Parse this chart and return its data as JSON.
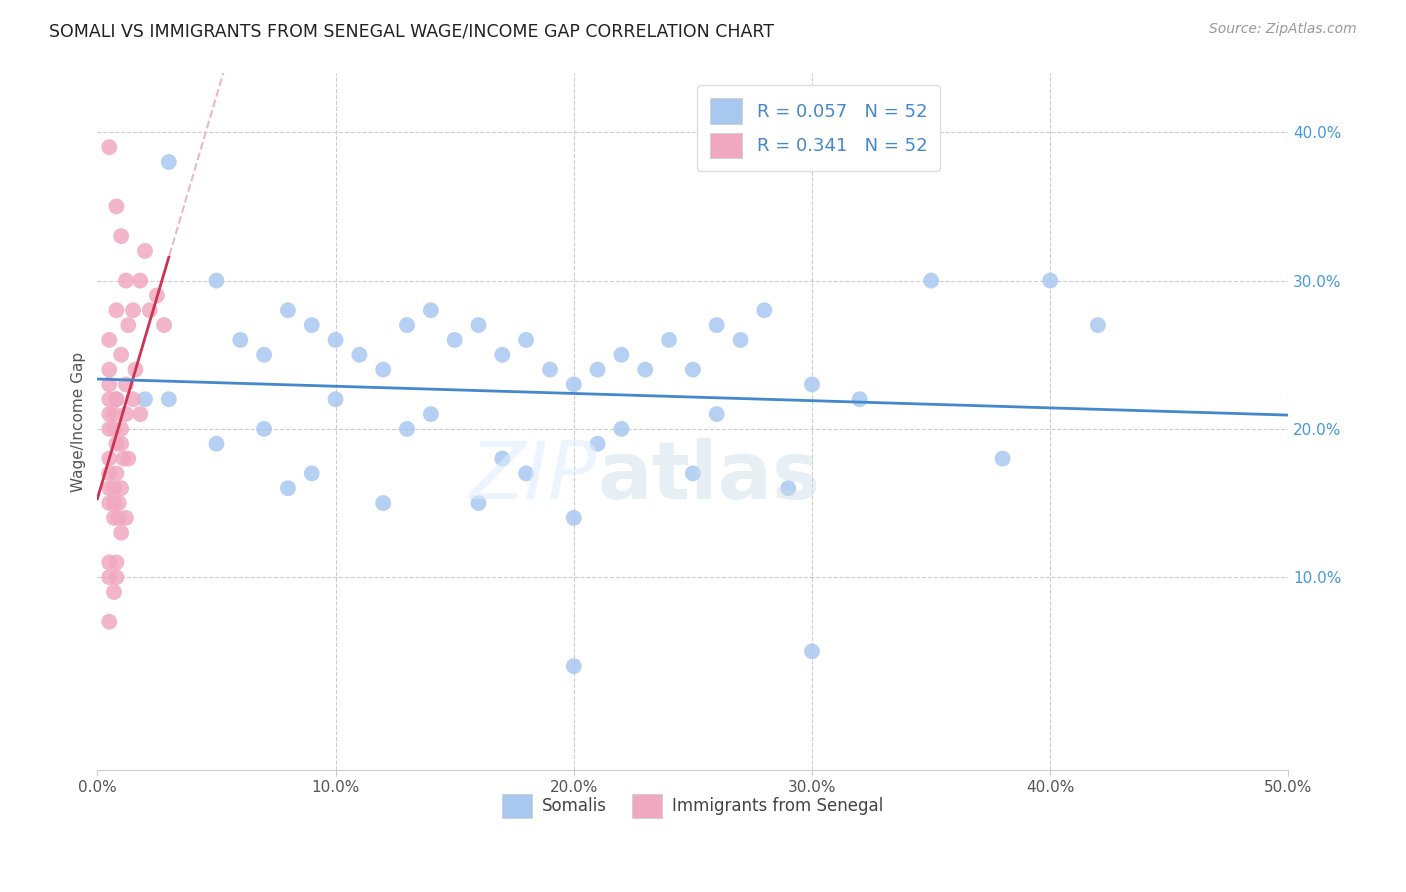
{
  "title": "SOMALI VS IMMIGRANTS FROM SENEGAL WAGE/INCOME GAP CORRELATION CHART",
  "source": "Source: ZipAtlas.com",
  "ylabel": "Wage/Income Gap",
  "xlim": [
    0.0,
    0.5
  ],
  "ylim": [
    -0.03,
    0.44
  ],
  "xticks": [
    0.0,
    0.1,
    0.2,
    0.3,
    0.4,
    0.5
  ],
  "xticklabels": [
    "0.0%",
    "10.0%",
    "20.0%",
    "30.0%",
    "40.0%",
    "50.0%"
  ],
  "yticks_right": [
    0.1,
    0.2,
    0.3,
    0.4
  ],
  "yticklabels_right": [
    "10.0%",
    "20.0%",
    "30.0%",
    "40.0%"
  ],
  "legend_label1": "Somalis",
  "legend_label2": "Immigrants from Senegal",
  "R1": "0.057",
  "N1": "52",
  "R2": "0.341",
  "N2": "52",
  "color_blue": "#a8c8f0",
  "color_pink": "#f0a8c0",
  "trendline_blue": "#4488cc",
  "trendline_pink": "#cc3355",
  "trendline_dashed_color": "#e8b8c8",
  "somali_x": [
    0.02,
    0.03,
    0.05,
    0.06,
    0.07,
    0.08,
    0.09,
    0.1,
    0.11,
    0.12,
    0.13,
    0.14,
    0.15,
    0.16,
    0.17,
    0.18,
    0.19,
    0.2,
    0.21,
    0.22,
    0.23,
    0.24,
    0.25,
    0.26,
    0.27,
    0.28,
    0.3,
    0.32,
    0.35,
    0.38,
    0.4,
    0.42,
    0.03,
    0.07,
    0.1,
    0.14,
    0.18,
    0.22,
    0.26,
    0.05,
    0.09,
    0.13,
    0.17,
    0.21,
    0.25,
    0.29,
    0.08,
    0.12,
    0.16,
    0.2,
    0.3,
    0.2
  ],
  "somali_y": [
    0.22,
    0.38,
    0.3,
    0.26,
    0.25,
    0.28,
    0.27,
    0.26,
    0.25,
    0.24,
    0.27,
    0.28,
    0.26,
    0.27,
    0.25,
    0.26,
    0.24,
    0.23,
    0.24,
    0.25,
    0.24,
    0.26,
    0.24,
    0.27,
    0.26,
    0.28,
    0.23,
    0.22,
    0.3,
    0.18,
    0.3,
    0.27,
    0.22,
    0.2,
    0.22,
    0.21,
    0.17,
    0.2,
    0.21,
    0.19,
    0.17,
    0.2,
    0.18,
    0.19,
    0.17,
    0.16,
    0.16,
    0.15,
    0.15,
    0.14,
    0.05,
    0.04
  ],
  "senegal_x": [
    0.005,
    0.008,
    0.01,
    0.012,
    0.015,
    0.018,
    0.02,
    0.022,
    0.025,
    0.028,
    0.005,
    0.008,
    0.01,
    0.013,
    0.016,
    0.005,
    0.008,
    0.012,
    0.015,
    0.018,
    0.005,
    0.007,
    0.01,
    0.013,
    0.005,
    0.008,
    0.011,
    0.005,
    0.008,
    0.01,
    0.005,
    0.007,
    0.009,
    0.012,
    0.005,
    0.007,
    0.009,
    0.005,
    0.007,
    0.01,
    0.005,
    0.007,
    0.005,
    0.008,
    0.01,
    0.012,
    0.005,
    0.008,
    0.005,
    0.007,
    0.005,
    0.008
  ],
  "senegal_y": [
    0.39,
    0.35,
    0.33,
    0.3,
    0.28,
    0.3,
    0.32,
    0.28,
    0.29,
    0.27,
    0.26,
    0.28,
    0.25,
    0.27,
    0.24,
    0.24,
    0.22,
    0.23,
    0.22,
    0.21,
    0.21,
    0.2,
    0.19,
    0.18,
    0.2,
    0.19,
    0.18,
    0.18,
    0.17,
    0.16,
    0.17,
    0.16,
    0.15,
    0.14,
    0.16,
    0.15,
    0.14,
    0.15,
    0.14,
    0.13,
    0.22,
    0.21,
    0.23,
    0.22,
    0.2,
    0.21,
    0.11,
    0.1,
    0.1,
    0.09,
    0.07,
    0.11
  ]
}
